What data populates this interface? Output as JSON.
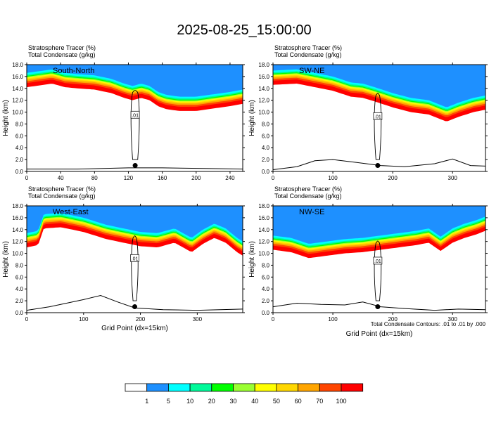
{
  "title": "2025-08-25_15:00:00",
  "footnote": "Total Condensate Contours: .01 to .01 by .000",
  "colorbar": {
    "labels": [
      "1",
      "5",
      "10",
      "20",
      "30",
      "40",
      "50",
      "60",
      "70",
      "100"
    ],
    "colors": [
      "#ffffff",
      "#1e90ff",
      "#00ffff",
      "#00fa9a",
      "#00ff00",
      "#9aff32",
      "#ffff00",
      "#ffd700",
      "#ffa500",
      "#ff4500",
      "#ff0000"
    ]
  },
  "chart_data": [
    {
      "type": "heatmap",
      "label": "South-North",
      "subtitle1": "Stratosphere Tracer   (%)",
      "subtitle2": "Total Condensate   (g/kg)",
      "ylabel": "Height (km)",
      "xlabel": "",
      "xlim": [
        0,
        255
      ],
      "ylim": [
        0,
        18
      ],
      "xticks": [
        0,
        40,
        80,
        120,
        160,
        200,
        240
      ],
      "yticks": [
        0.0,
        2.0,
        4.0,
        6.0,
        8.0,
        10.0,
        12.0,
        14.0,
        16.0,
        18.0
      ],
      "tracer_base": [
        [
          0,
          14.2
        ],
        [
          15,
          14.5
        ],
        [
          30,
          14.8
        ],
        [
          45,
          14.2
        ],
        [
          60,
          14.0
        ],
        [
          80,
          13.8
        ],
        [
          100,
          13.2
        ],
        [
          115,
          12.4
        ],
        [
          125,
          12.0
        ],
        [
          135,
          12.4
        ],
        [
          145,
          12.0
        ],
        [
          155,
          11.0
        ],
        [
          165,
          10.5
        ],
        [
          180,
          10.2
        ],
        [
          200,
          10.2
        ],
        [
          220,
          10.6
        ],
        [
          240,
          11.0
        ],
        [
          255,
          11.4
        ]
      ],
      "contour_label": ".01",
      "marker": [
        128,
        1.0
      ],
      "terrain": [
        [
          0,
          0.4
        ],
        [
          60,
          0.4
        ],
        [
          90,
          0.5
        ],
        [
          120,
          0.6
        ],
        [
          160,
          0.6
        ],
        [
          210,
          0.5
        ],
        [
          255,
          0.4
        ]
      ]
    },
    {
      "type": "heatmap",
      "label": "SW-NE",
      "subtitle1": "Stratosphere Tracer   (%)",
      "subtitle2": "Total Condensate   (g/kg)",
      "ylabel": "Height (km)",
      "xlabel": "",
      "xlim": [
        0,
        355
      ],
      "ylim": [
        0,
        18
      ],
      "xticks": [
        0,
        100,
        200,
        300
      ],
      "yticks": [
        0.0,
        2.0,
        4.0,
        6.0,
        8.0,
        10.0,
        12.0,
        14.0,
        16.0,
        18.0
      ],
      "tracer_base": [
        [
          0,
          14.6
        ],
        [
          40,
          14.8
        ],
        [
          70,
          14.2
        ],
        [
          100,
          13.6
        ],
        [
          130,
          12.6
        ],
        [
          150,
          12.4
        ],
        [
          170,
          11.8
        ],
        [
          200,
          10.8
        ],
        [
          230,
          10.0
        ],
        [
          260,
          9.6
        ],
        [
          290,
          8.4
        ],
        [
          310,
          9.2
        ],
        [
          335,
          10.0
        ],
        [
          355,
          10.4
        ]
      ],
      "contour_label": ".01",
      "marker": [
        175,
        1.0
      ],
      "terrain": [
        [
          0,
          0.3
        ],
        [
          40,
          0.8
        ],
        [
          70,
          1.8
        ],
        [
          100,
          2.0
        ],
        [
          140,
          1.5
        ],
        [
          180,
          1.0
        ],
        [
          220,
          0.8
        ],
        [
          270,
          1.3
        ],
        [
          300,
          2.1
        ],
        [
          330,
          1.0
        ],
        [
          355,
          0.9
        ]
      ]
    },
    {
      "type": "heatmap",
      "label": "West-East",
      "subtitle1": "Stratosphere Tracer   (%)",
      "subtitle2": "Total Condensate   (g/kg)",
      "ylabel": "Height (km)",
      "xlabel": "Grid Point (dx=15km)",
      "xlim": [
        0,
        380
      ],
      "ylim": [
        0,
        18
      ],
      "xticks": [
        0,
        100,
        200,
        300
      ],
      "yticks": [
        0.0,
        2.0,
        4.0,
        6.0,
        8.0,
        10.0,
        12.0,
        14.0,
        16.0,
        18.0
      ],
      "tracer_base": [
        [
          0,
          11.0
        ],
        [
          20,
          11.4
        ],
        [
          30,
          14.2
        ],
        [
          60,
          14.4
        ],
        [
          100,
          13.6
        ],
        [
          140,
          12.4
        ],
        [
          170,
          11.8
        ],
        [
          200,
          11.2
        ],
        [
          230,
          11.0
        ],
        [
          260,
          11.8
        ],
        [
          290,
          10.2
        ],
        [
          310,
          11.6
        ],
        [
          330,
          12.6
        ],
        [
          350,
          11.8
        ],
        [
          370,
          10.2
        ],
        [
          380,
          9.6
        ]
      ],
      "contour_label": ".01",
      "marker": [
        190,
        1.0
      ],
      "terrain": [
        [
          0,
          0.4
        ],
        [
          40,
          1.0
        ],
        [
          70,
          1.6
        ],
        [
          100,
          2.2
        ],
        [
          130,
          2.9
        ],
        [
          160,
          1.8
        ],
        [
          190,
          0.8
        ],
        [
          240,
          0.5
        ],
        [
          300,
          0.4
        ],
        [
          380,
          0.6
        ]
      ]
    },
    {
      "type": "heatmap",
      "label": "NW-SE",
      "subtitle1": "Stratosphere Tracer   (%)",
      "subtitle2": "Total Condensate   (g/kg)",
      "ylabel": "Height (km)",
      "xlabel": "Grid Point (dx=15km)",
      "xlim": [
        0,
        355
      ],
      "ylim": [
        0,
        18
      ],
      "xticks": [
        0,
        100,
        200,
        300
      ],
      "yticks": [
        0.0,
        2.0,
        4.0,
        6.0,
        8.0,
        10.0,
        12.0,
        14.0,
        16.0,
        18.0
      ],
      "tracer_base": [
        [
          0,
          10.6
        ],
        [
          30,
          10.2
        ],
        [
          60,
          9.2
        ],
        [
          90,
          9.6
        ],
        [
          120,
          10.0
        ],
        [
          150,
          10.2
        ],
        [
          180,
          10.6
        ],
        [
          210,
          11.0
        ],
        [
          240,
          11.4
        ],
        [
          260,
          11.8
        ],
        [
          280,
          10.4
        ],
        [
          300,
          11.8
        ],
        [
          320,
          12.6
        ],
        [
          340,
          13.2
        ],
        [
          355,
          13.8
        ]
      ],
      "contour_label": ".01",
      "marker": [
        175,
        1.0
      ],
      "terrain": [
        [
          0,
          1.0
        ],
        [
          40,
          1.6
        ],
        [
          80,
          1.4
        ],
        [
          120,
          1.3
        ],
        [
          150,
          1.8
        ],
        [
          180,
          1.0
        ],
        [
          220,
          0.7
        ],
        [
          270,
          0.4
        ],
        [
          310,
          0.6
        ],
        [
          355,
          0.5
        ]
      ]
    }
  ]
}
